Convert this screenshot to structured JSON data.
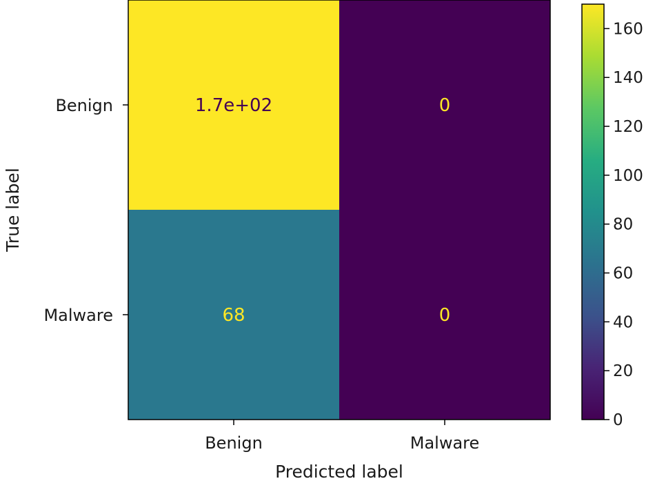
{
  "chart_data": {
    "type": "heatmap",
    "xlabel": "Predicted label",
    "ylabel": "True label",
    "x_categories": [
      "Benign",
      "Malware"
    ],
    "y_categories": [
      "Benign",
      "Malware"
    ],
    "values": [
      [
        170,
        0
      ],
      [
        68,
        0
      ]
    ],
    "cell_labels": [
      [
        "1.7e+02",
        "0"
      ],
      [
        "68",
        "0"
      ]
    ],
    "colormap": "viridis",
    "colorbar": {
      "min": 0,
      "max": 170,
      "ticks": [
        0,
        20,
        40,
        60,
        80,
        100,
        120,
        140,
        160
      ],
      "tick_labels": [
        "0",
        "20",
        "40",
        "60",
        "80",
        "100",
        "120",
        "140",
        "160"
      ]
    },
    "colors": {
      "high": "#fde725",
      "mid": "#25818e",
      "low": "#440154",
      "label_on_dark": "#fde725",
      "label_on_light": "#440154"
    }
  }
}
